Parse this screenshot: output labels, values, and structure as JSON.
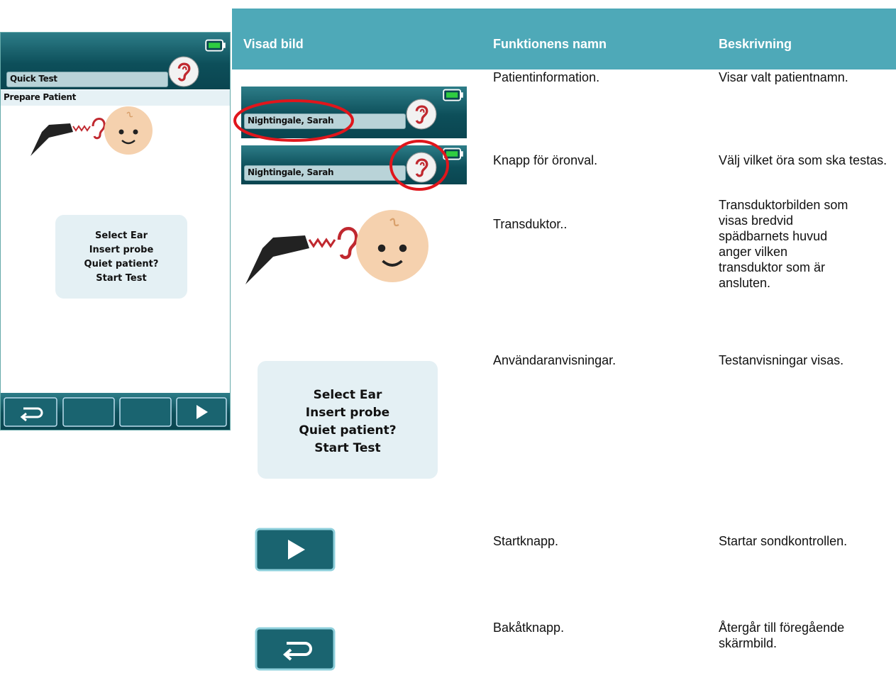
{
  "device": {
    "title": "Quick Test",
    "subtitle": "Prepare Patient",
    "instructions": [
      "Select Ear",
      "Insert probe",
      "Quiet patient?",
      "Start Test"
    ]
  },
  "table": {
    "headers": [
      "Visad bild",
      "Funktionens namn",
      "Beskrivning"
    ],
    "rows": [
      {
        "image_text": "Nightingale, Sarah",
        "name": "Patientinformation.",
        "description": "Visar valt patientnamn."
      },
      {
        "image_text": "Nightingale, Sarah",
        "name": "Knapp för öronval.",
        "description": "Välj vilket öra som ska testas."
      },
      {
        "name": "Transduktor..",
        "description": "Transduktorbilden som visas bredvid spädbarnets huvud anger vilken transduktor som är ansluten."
      },
      {
        "image_lines": [
          "Select Ear",
          "Insert probe",
          "Quiet patient?",
          "Start Test"
        ],
        "name": "Användaranvisningar.",
        "description": "Testanvisningar visas."
      },
      {
        "name": "Startknapp.",
        "description": "Startar sondkontrollen."
      },
      {
        "name": "Bakåtknapp.",
        "description": "Återgår till föregående skärmbild."
      }
    ]
  }
}
